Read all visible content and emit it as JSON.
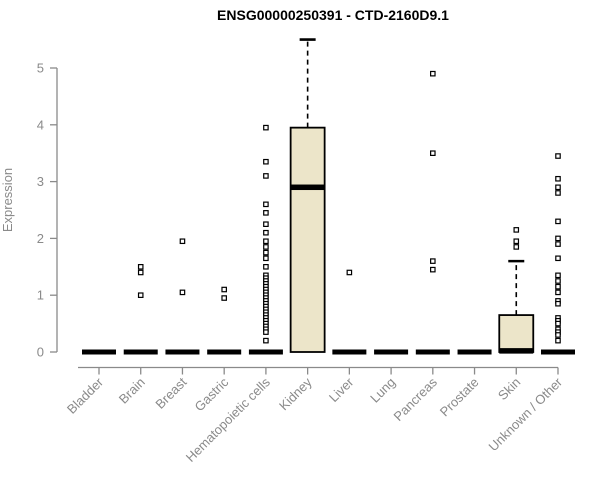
{
  "colors": {
    "background": "#FFFFFF",
    "title": "#000000",
    "axis": "#8A8A8A",
    "box_fill": "#ECE5C9",
    "box_stroke": "#000000",
    "median": "#000000",
    "outlier_fill": "#FFFFFF",
    "outlier_stroke": "#000000"
  },
  "chart_data": {
    "type": "boxplot",
    "title": "ENSG00000250391 - CTD-2160D9.1",
    "ylabel": "Expression",
    "xlabel": "",
    "ylim": [
      0,
      5.6
    ],
    "yticks": [
      0,
      1,
      2,
      3,
      4,
      5
    ],
    "grid": false,
    "legend": false,
    "categories": [
      "Bladder",
      "Brain",
      "Breast",
      "Gastric",
      "Hematopoietic cells",
      "Kidney",
      "Liver",
      "Lung",
      "Pancreas",
      "Prostate",
      "Skin",
      "Unknown / Other"
    ],
    "series": [
      {
        "name": "Bladder",
        "whisker_low": 0,
        "q1": 0,
        "median": 0,
        "q3": 0,
        "whisker_high": 0,
        "outliers": []
      },
      {
        "name": "Brain",
        "whisker_low": 0,
        "q1": 0,
        "median": 0,
        "q3": 0,
        "whisker_high": 0,
        "outliers": [
          1.5,
          1.4,
          1.0
        ]
      },
      {
        "name": "Breast",
        "whisker_low": 0,
        "q1": 0,
        "median": 0,
        "q3": 0,
        "whisker_high": 0,
        "outliers": [
          1.95,
          1.05
        ]
      },
      {
        "name": "Gastric",
        "whisker_low": 0,
        "q1": 0,
        "median": 0,
        "q3": 0,
        "whisker_high": 0,
        "outliers": [
          1.1,
          0.95
        ]
      },
      {
        "name": "Hematopoietic cells",
        "whisker_low": 0,
        "q1": 0,
        "median": 0,
        "q3": 0,
        "whisker_high": 0,
        "outliers": [
          3.95,
          3.35,
          3.1,
          2.6,
          2.45,
          2.25,
          2.1,
          1.95,
          1.85,
          1.75,
          1.65,
          1.5,
          1.35,
          1.3,
          1.25,
          1.2,
          1.15,
          1.1,
          1.05,
          1.0,
          0.95,
          0.9,
          0.85,
          0.8,
          0.75,
          0.7,
          0.65,
          0.6,
          0.55,
          0.5,
          0.45,
          0.4,
          0.35,
          0.2
        ]
      },
      {
        "name": "Kidney",
        "whisker_low": 0,
        "q1": 0,
        "median": 2.9,
        "q3": 3.95,
        "whisker_high": 5.5,
        "outliers": []
      },
      {
        "name": "Liver",
        "whisker_low": 0,
        "q1": 0,
        "median": 0,
        "q3": 0,
        "whisker_high": 0,
        "outliers": [
          1.4
        ]
      },
      {
        "name": "Lung",
        "whisker_low": 0,
        "q1": 0,
        "median": 0,
        "q3": 0,
        "whisker_high": 0,
        "outliers": []
      },
      {
        "name": "Pancreas",
        "whisker_low": 0,
        "q1": 0,
        "median": 0,
        "q3": 0,
        "whisker_high": 0,
        "outliers": [
          4.9,
          3.5,
          1.6,
          1.45
        ]
      },
      {
        "name": "Prostate",
        "whisker_low": 0,
        "q1": 0,
        "median": 0,
        "q3": 0,
        "whisker_high": 0,
        "outliers": []
      },
      {
        "name": "Skin",
        "whisker_low": 0,
        "q1": 0,
        "median": 0.02,
        "q3": 0.65,
        "whisker_high": 1.6,
        "outliers": [
          2.15,
          1.95,
          1.85
        ]
      },
      {
        "name": "Unknown / Other",
        "whisker_low": 0,
        "q1": 0,
        "median": 0,
        "q3": 0,
        "whisker_high": 0,
        "outliers": [
          3.45,
          3.05,
          2.9,
          2.8,
          2.3,
          2.0,
          1.9,
          1.65,
          1.35,
          1.25,
          1.15,
          1.05,
          0.9,
          0.85,
          0.6,
          0.55,
          0.5,
          0.4,
          0.35,
          0.3,
          0.2
        ]
      }
    ]
  }
}
